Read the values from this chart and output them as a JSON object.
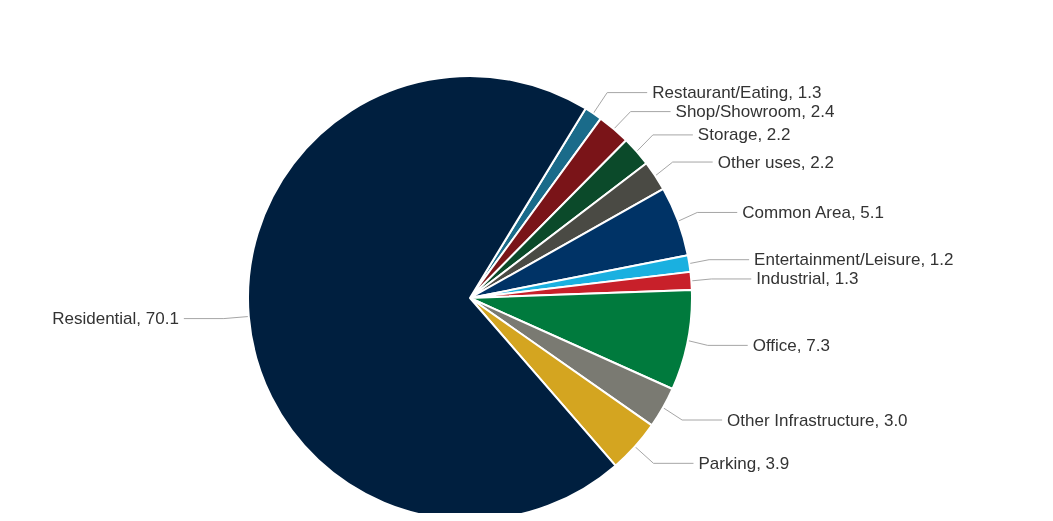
{
  "chart_data": {
    "type": "pie",
    "categories": [
      "Restaurant/Eating",
      "Shop/Showroom",
      "Storage",
      "Other uses",
      "Common Area",
      "Entertainment/Leisure",
      "Industrial",
      "Office",
      "Other Infrastructure",
      "Parking",
      "Residential"
    ],
    "values": [
      1.3,
      2.4,
      2.2,
      2.2,
      5.1,
      1.2,
      1.3,
      7.3,
      3.0,
      3.9,
      70.1
    ],
    "value_labels": [
      "1.3",
      "2.4",
      "2.2",
      "2.2",
      "5.1",
      "1.2",
      "1.3",
      "7.3",
      "3.0",
      "3.9",
      "70.1"
    ],
    "colors": [
      "#1a6b8a",
      "#7a1418",
      "#0b4a2a",
      "#4a4a44",
      "#003366",
      "#1ab0e0",
      "#c8202a",
      "#007a3d",
      "#7a7a72",
      "#d4a520",
      "#001f3f"
    ],
    "legend": false
  }
}
